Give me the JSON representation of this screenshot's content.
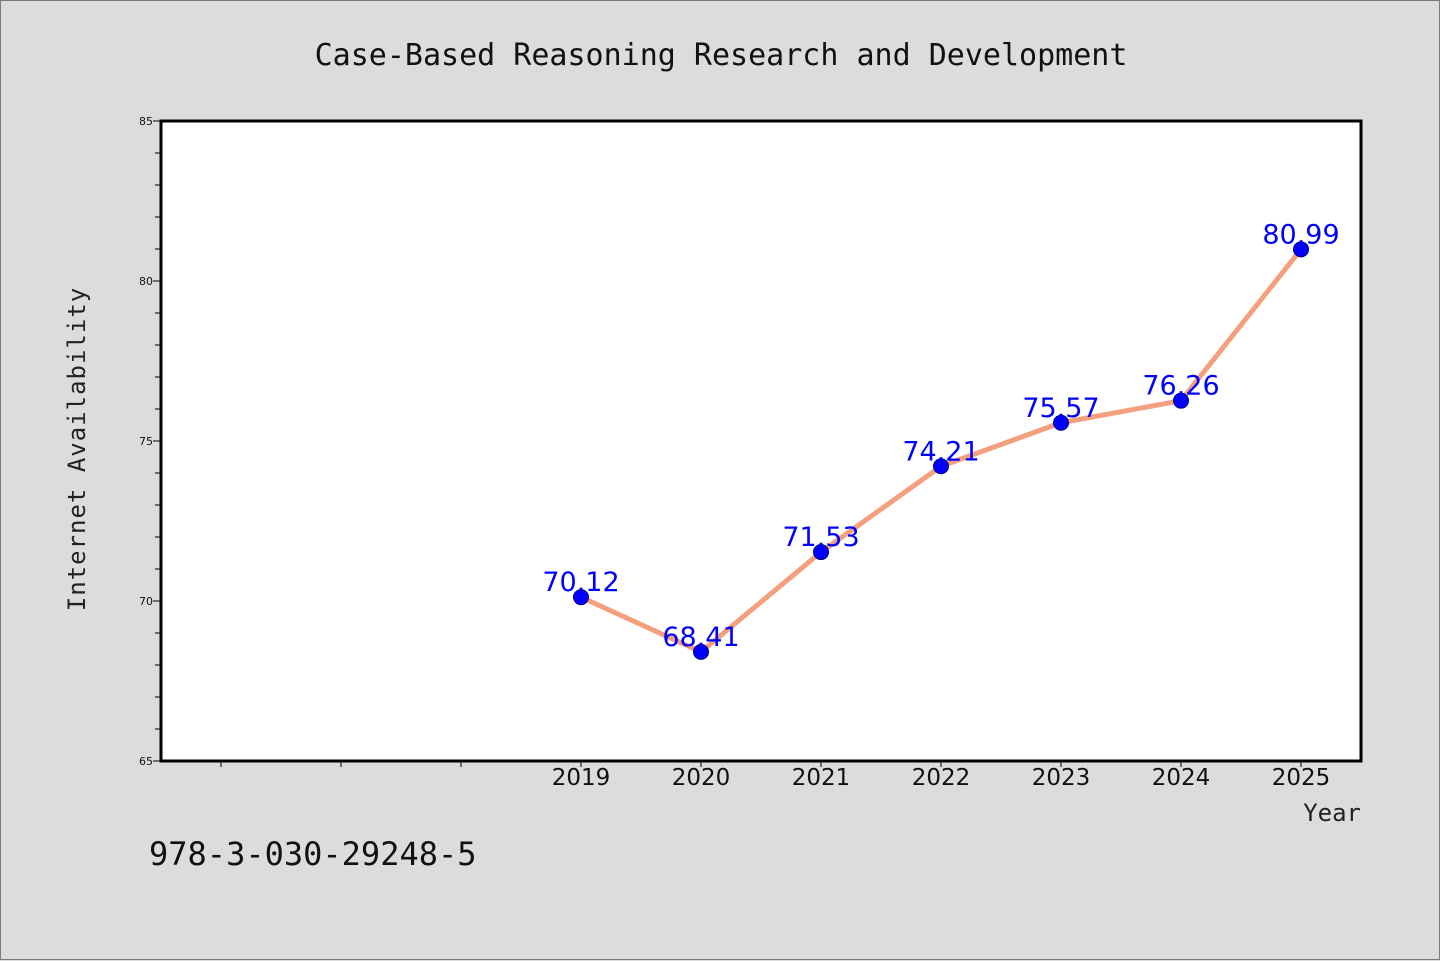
{
  "chart_data": {
    "type": "line",
    "title": "Case-Based Reasoning Research and Development",
    "xlabel": "Year",
    "ylabel": "Internet Availability",
    "x": [
      "2019",
      "2020",
      "2021",
      "2022",
      "2023",
      "2024",
      "2025"
    ],
    "series": [
      {
        "values": [
          70.12,
          68.41,
          71.53,
          74.21,
          75.57,
          76.26,
          80.99
        ],
        "data_labels": [
          "70.12",
          "68.41",
          "71.53",
          "74.21",
          "75.57",
          "76.26",
          "80.99"
        ]
      }
    ],
    "ylim": [
      65,
      85
    ],
    "yticks": [
      "65",
      "70",
      "75",
      "80",
      "85"
    ],
    "grid": false,
    "line_color": "#f4a07e",
    "marker_color": "#0000ff",
    "label_color": "#0000ff"
  },
  "footer": {
    "isbn": "978-3-030-29248-5"
  }
}
